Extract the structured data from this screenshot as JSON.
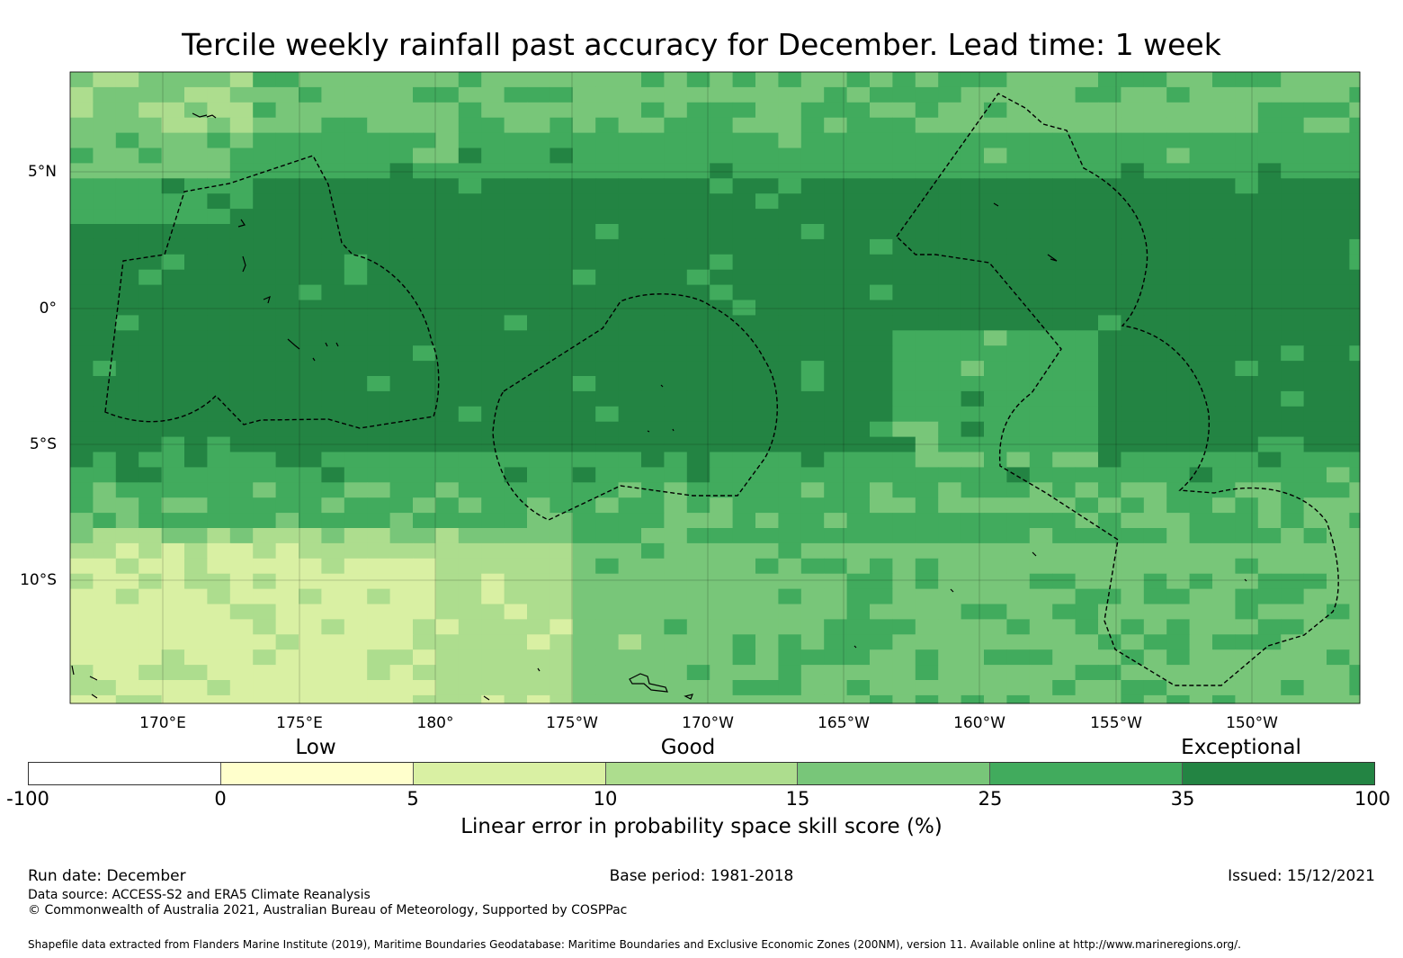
{
  "title": "Tercile weekly rainfall past accuracy for December. Lead time: 1 week",
  "map": {
    "lon_labels": [
      "170°E",
      "175°E",
      "180°",
      "175°W",
      "170°W",
      "165°W",
      "160°W",
      "155°W",
      "150°W"
    ],
    "lat_labels": [
      "5°N",
      "0°",
      "5°S",
      "10°S"
    ],
    "colors": [
      "#ffffff",
      "#ffffcc",
      "#d9f0a3",
      "#addd8e",
      "#78c679",
      "#41ab5d",
      "#238443"
    ]
  },
  "legend": {
    "categories": [
      "Low",
      "Good",
      "Exceptional"
    ],
    "ticks": [
      "-100",
      "0",
      "5",
      "10",
      "15",
      "25",
      "35",
      "100"
    ],
    "title": "Linear error in probability space skill score (%)"
  },
  "footer": {
    "run_date": "Run date: December",
    "base_period": "Base period: 1981-2018",
    "issued": "Issued: 15/12/2021",
    "data_source": "Data source: ACCESS-S2 and ERA5 Climate Reanalysis",
    "copyright": "© Commonwealth of Australia 2021, Australian Bureau of Meteorology, Supported by COSPPac",
    "shapefile": "Shapefile data extracted from Flanders Marine Institute (2019), Maritime Boundaries Geodatabase: Maritime Boundaries and Exclusive Economic Zones (200NM), version 11. Available online at http://www.marineregions.org/."
  }
}
